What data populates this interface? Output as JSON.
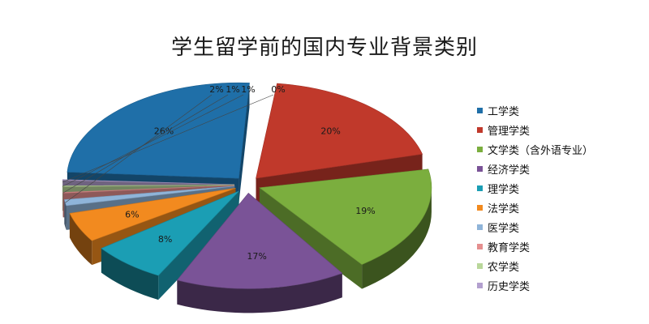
{
  "chart_data": {
    "type": "pie",
    "title": "学生留学前的国内专业背景类别",
    "legend_position": "right",
    "slices": [
      {
        "name": "工学类",
        "value": 26,
        "label": "26%",
        "color": "#1f6fa8"
      },
      {
        "name": "管理学类",
        "value": 20,
        "label": "20%",
        "color": "#c0392b"
      },
      {
        "name": "文学类（含外语专业）",
        "value": 19,
        "label": "19%",
        "color": "#7bae3e"
      },
      {
        "name": "经济学类",
        "value": 17,
        "label": "17%",
        "color": "#7a5397"
      },
      {
        "name": "理学类",
        "value": 8,
        "label": "8%",
        "color": "#1b9eb4"
      },
      {
        "name": "法学类",
        "value": 6,
        "label": "6%",
        "color": "#f28a1f"
      },
      {
        "name": "医学类",
        "value": 2,
        "label": "2%",
        "color": "#8fb4d9"
      },
      {
        "name": "教育学类",
        "value": 1,
        "label": "1%",
        "color": "#e58f8f"
      },
      {
        "name": "农学类",
        "value": 1,
        "label": "1%",
        "color": "#b9d79a"
      },
      {
        "name": "历史学类",
        "value": 0,
        "label": "0%",
        "color": "#b3a0cf"
      }
    ]
  }
}
